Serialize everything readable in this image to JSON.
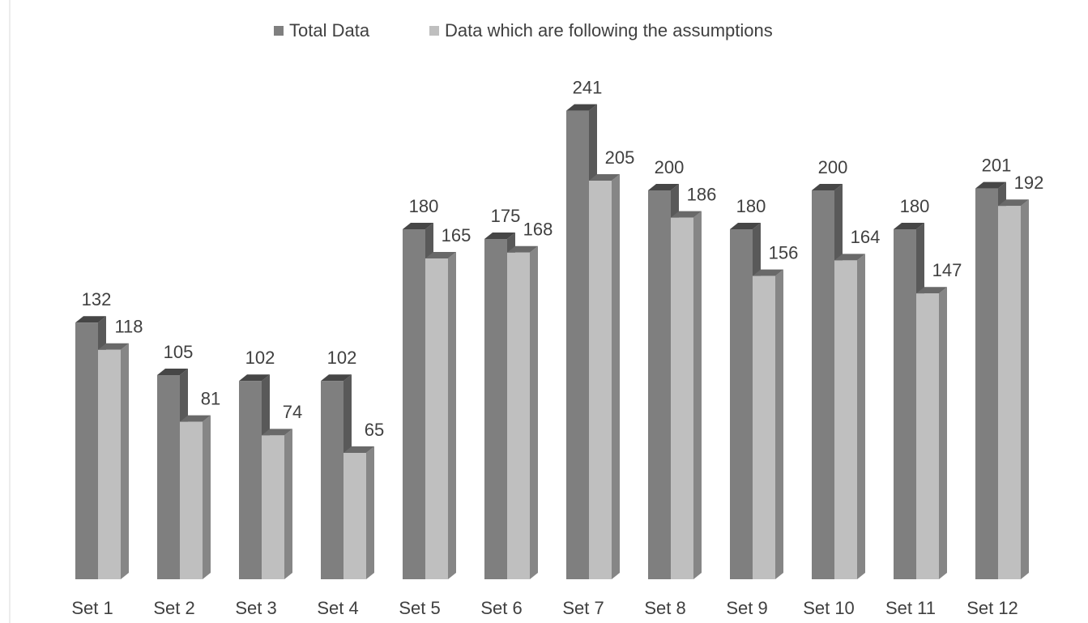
{
  "chart_data": {
    "type": "bar3d",
    "categories": [
      "Set 1",
      "Set 2",
      "Set 3",
      "Set 4",
      "Set 5",
      "Set 6",
      "Set 7",
      "Set 8",
      "Set 9",
      "Set 10",
      "Set 11",
      "Set 12"
    ],
    "series": [
      {
        "name": "Total Data",
        "color": "#7f7f7f",
        "values": [
          132,
          105,
          102,
          102,
          180,
          175,
          241,
          200,
          180,
          200,
          180,
          201
        ]
      },
      {
        "name": "Data which are following the assumptions",
        "color": "#bfbfbf",
        "values": [
          118,
          81,
          74,
          65,
          165,
          168,
          205,
          186,
          156,
          164,
          147,
          192
        ]
      }
    ],
    "legend": "top"
  }
}
